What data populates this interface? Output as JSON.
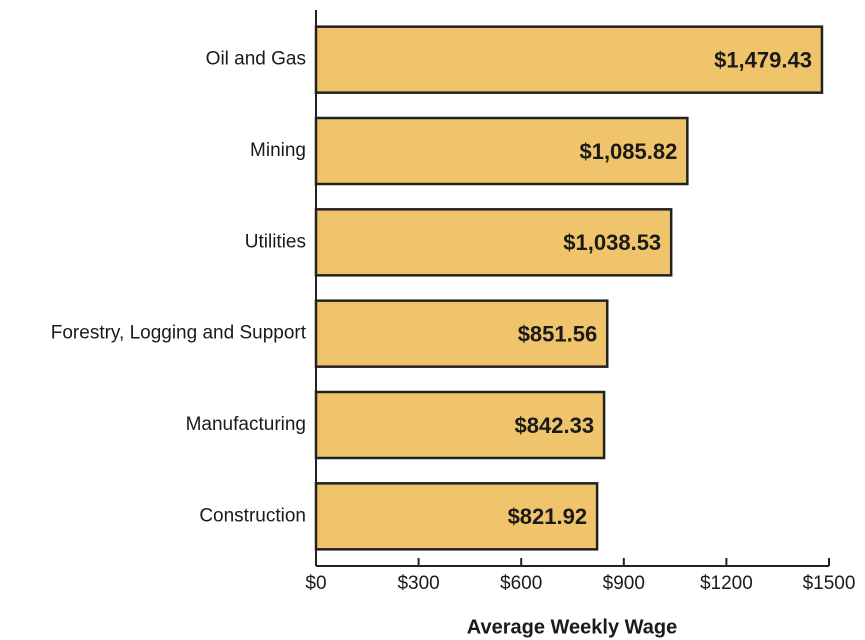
{
  "chart_data": {
    "type": "bar",
    "orientation": "horizontal",
    "x_label": "Average Weekly Wage",
    "categories": [
      "Oil and Gas",
      "Mining",
      "Utilities",
      "Forestry, Logging and Support",
      "Manufacturing",
      "Construction"
    ],
    "values": [
      1479.43,
      1085.82,
      1038.53,
      851.56,
      842.33,
      821.92
    ],
    "value_labels": [
      "$1,479.43",
      "$1,085.82",
      "$1,038.53",
      "$851.56",
      "$842.33",
      "$821.92"
    ],
    "color": "#f0c46a",
    "xlim": [
      0,
      1500
    ],
    "xticks": [
      {
        "value": 0,
        "label": "$0"
      },
      {
        "value": 300,
        "label": "$300"
      },
      {
        "value": 600,
        "label": "$600"
      },
      {
        "value": 900,
        "label": "$900"
      },
      {
        "value": 1200,
        "label": "$1200"
      },
      {
        "value": 1500,
        "label": "$1500"
      }
    ],
    "grid": false
  }
}
